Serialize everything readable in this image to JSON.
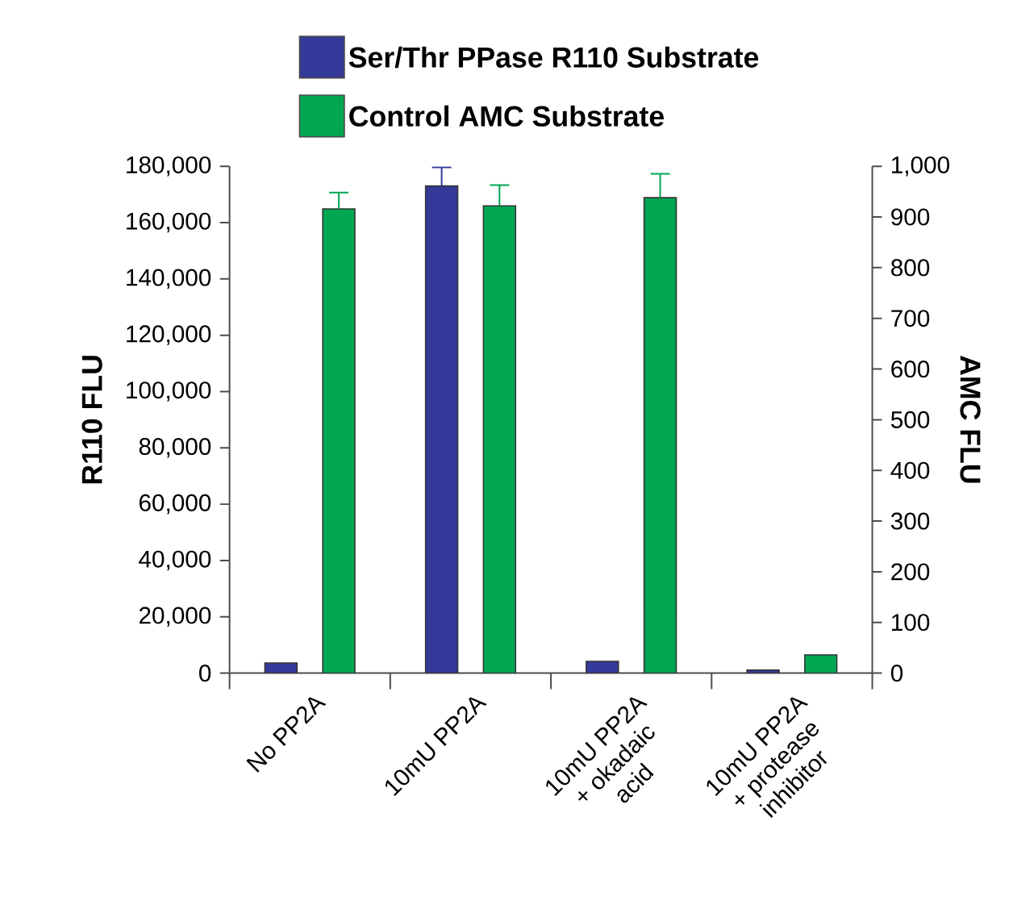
{
  "chart_data": {
    "type": "bar",
    "ylabel": "R110 FLU",
    "y2label": "AMC FLU",
    "categories": [
      "No PP2A",
      "10mU PP2A",
      "10mU PP2A + okadaic acid",
      "10mU PP2A + protease inhibitor"
    ],
    "series": [
      {
        "name": "Ser/Thr PPase R110 Substrate",
        "color": "#35399a",
        "values": [
          3600,
          173000,
          4200,
          1100
        ],
        "errors": [
          null,
          6600,
          null,
          null
        ]
      },
      {
        "name": "Control AMC Substrate",
        "color": "#00a651",
        "axis": "y2",
        "values": [
          916,
          922,
          938,
          36
        ],
        "errors": [
          32,
          41,
          47,
          null
        ]
      }
    ],
    "ylim": [
      0,
      180000
    ],
    "yticks": [
      0,
      {
        "value": 20000,
        "label": "20,000"
      },
      {
        "value": 40000,
        "label": "40,000"
      },
      {
        "value": 60000,
        "label": "60,000"
      },
      {
        "value": 80000,
        "label": "80,000"
      },
      {
        "value": 100000,
        "label": "100,000"
      },
      {
        "value": 120000,
        "label": "120,000"
      },
      {
        "value": 140000,
        "label": "140,000"
      },
      {
        "value": 160000,
        "label": "160,000"
      },
      {
        "value": 180000,
        "label": "180,000"
      }
    ],
    "y2lim": [
      0,
      1000
    ],
    "y2ticks": [
      0,
      100,
      200,
      300,
      400,
      500,
      600,
      700,
      800,
      900,
      {
        "value": 1000,
        "label": "1,000"
      }
    ],
    "legend": "top"
  }
}
